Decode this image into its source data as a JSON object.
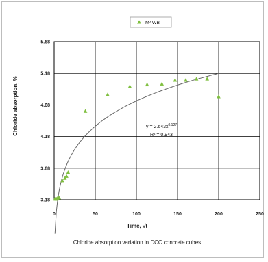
{
  "chart_data": {
    "type": "scatter",
    "caption": "Chloride absorption variation in DCC concrete cubes",
    "xlabel": "Time, √t",
    "ylabel": "Chloride absorption, %",
    "xlim": [
      0,
      250
    ],
    "ylim": [
      3.18,
      5.68
    ],
    "x_ticks": [
      "0",
      "50",
      "100",
      "150",
      "200",
      "250"
    ],
    "y_ticks": [
      "3.18",
      "3.68",
      "4.18",
      "4.68",
      "5.18",
      "5.68"
    ],
    "grid": "horizontal and vertical major",
    "legend_position": "top-center",
    "series": [
      {
        "name": "M4WB",
        "marker": "triangle",
        "color": "#7fbf3f",
        "points": [
          {
            "x": 1,
            "y": 3.19
          },
          {
            "x": 2,
            "y": 3.19
          },
          {
            "x": 3,
            "y": 3.19
          },
          {
            "x": 4,
            "y": 3.2
          },
          {
            "x": 6,
            "y": 3.21
          },
          {
            "x": 10,
            "y": 3.48
          },
          {
            "x": 13,
            "y": 3.52
          },
          {
            "x": 15,
            "y": 3.55
          },
          {
            "x": 17,
            "y": 3.61
          },
          {
            "x": 38,
            "y": 4.58
          },
          {
            "x": 65,
            "y": 4.84
          },
          {
            "x": 92,
            "y": 4.97
          },
          {
            "x": 113,
            "y": 5.0
          },
          {
            "x": 131,
            "y": 5.01
          },
          {
            "x": 147,
            "y": 5.07
          },
          {
            "x": 160,
            "y": 5.07
          },
          {
            "x": 173,
            "y": 5.09
          },
          {
            "x": 186,
            "y": 5.09
          },
          {
            "x": 200,
            "y": 4.81
          }
        ]
      }
    ],
    "trendline": {
      "type": "power",
      "equation": "y = 2.643x",
      "exponent": "0.127",
      "r_squared": "R² = 0.943",
      "a": 2.643,
      "b": 0.127,
      "x_range": [
        1,
        200
      ],
      "color": "#666666"
    }
  }
}
